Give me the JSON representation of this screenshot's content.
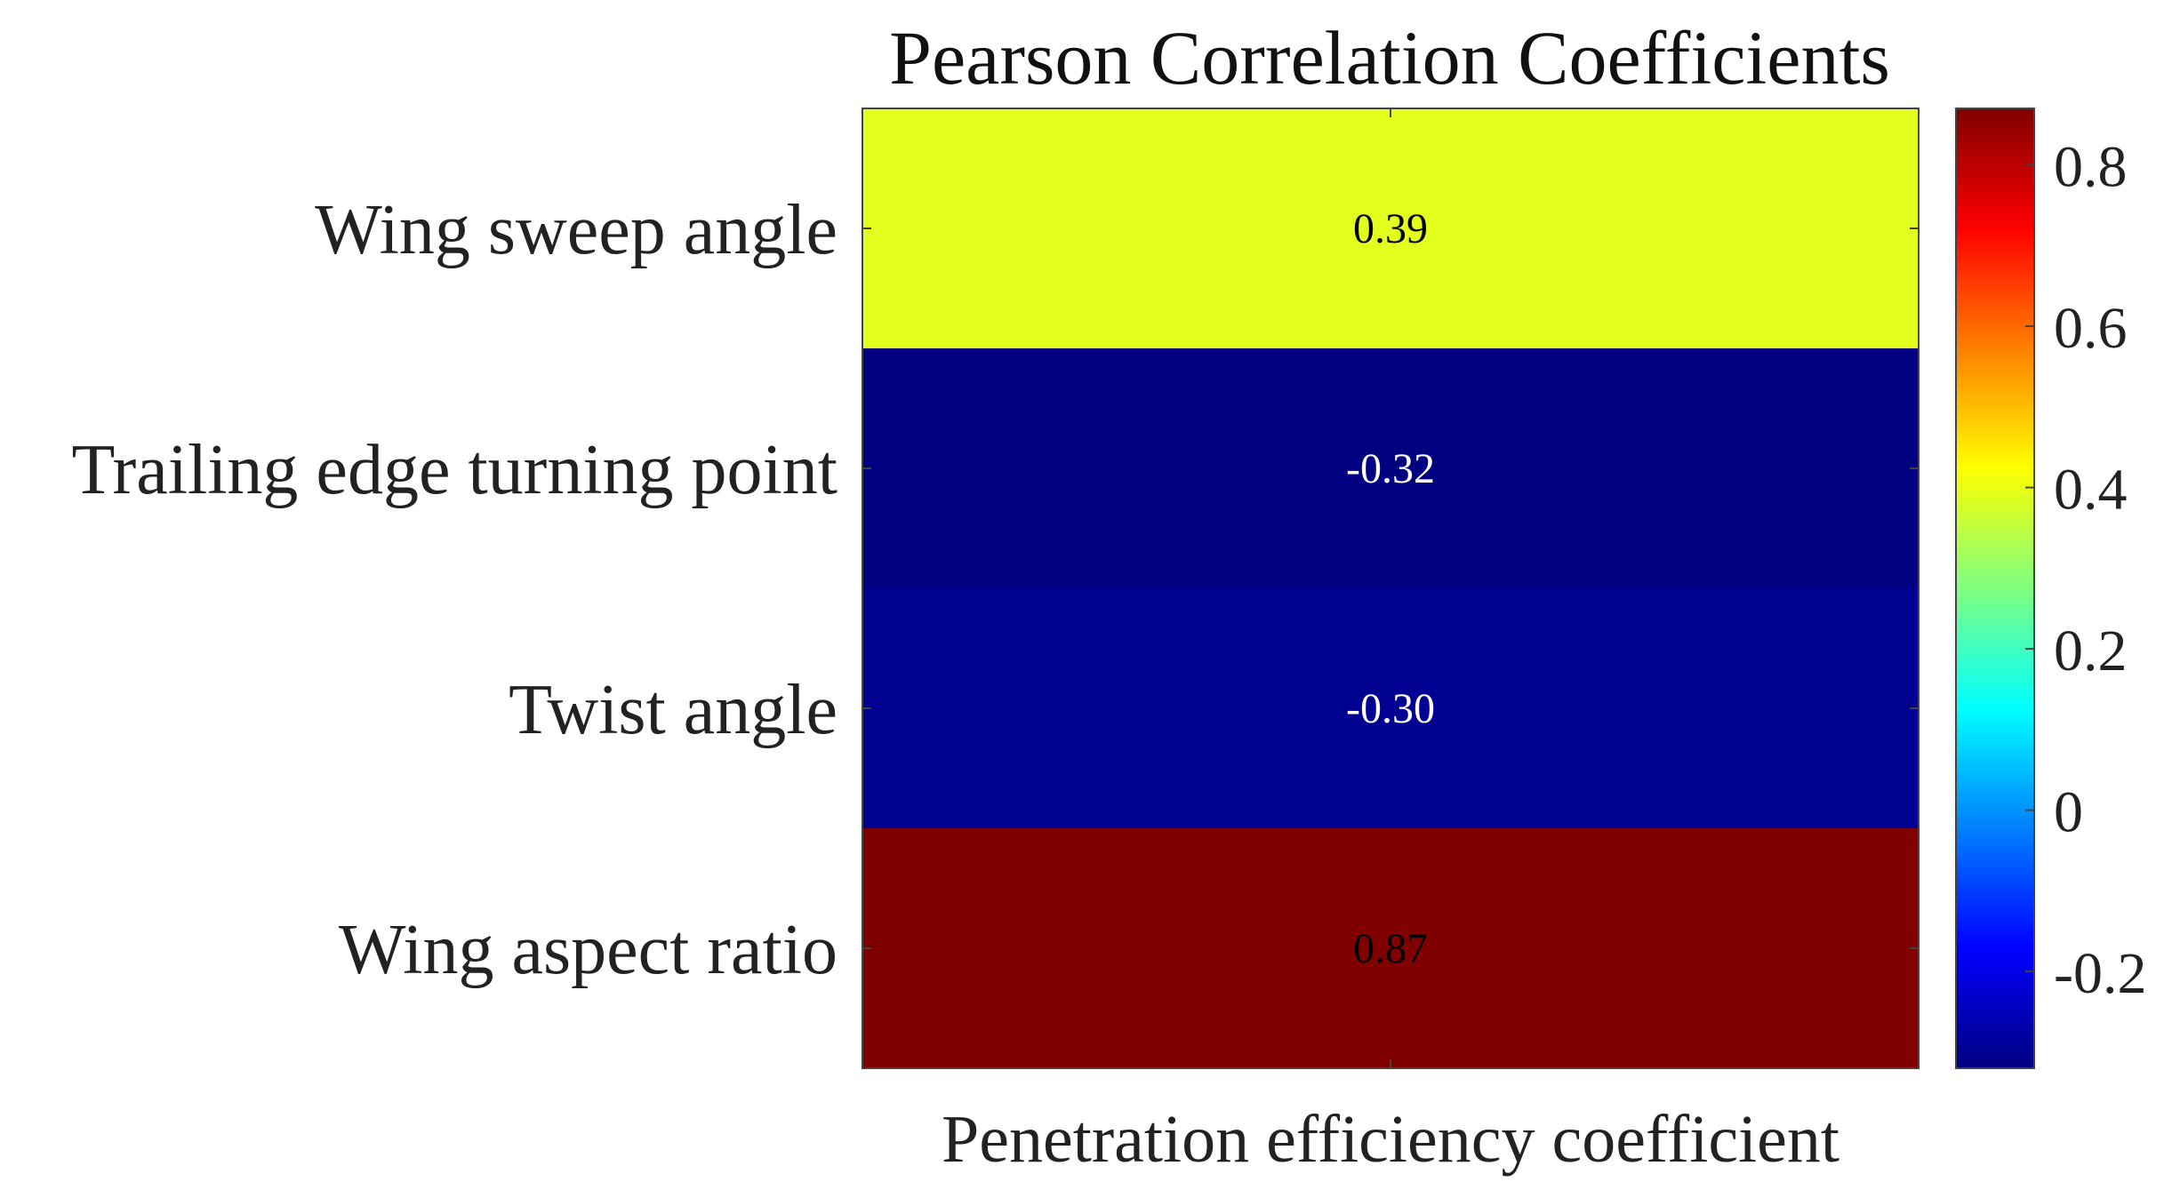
{
  "chart_data": {
    "type": "heatmap",
    "title": "Pearson Correlation Coefficients",
    "xlabel": "Penetration efficiency coefficient",
    "ylabel": "",
    "rows": [
      "Wing sweep angle",
      "Trailing edge turning point",
      "Twist angle",
      "Wing aspect ratio"
    ],
    "columns": [
      "Penetration efficiency coefficient"
    ],
    "values": [
      0.39,
      -0.32,
      -0.3,
      0.87
    ],
    "value_labels": [
      "0.39",
      "-0.32",
      "-0.30",
      "0.87"
    ],
    "colormap": "jet",
    "colorbar": {
      "range": [
        -0.32,
        0.87
      ],
      "ticks": [
        -0.2,
        0,
        0.2,
        0.4,
        0.6,
        0.8
      ],
      "tick_labels": [
        "-0.2",
        "0",
        "0.2",
        "0.4",
        "0.6",
        "0.8"
      ]
    }
  }
}
